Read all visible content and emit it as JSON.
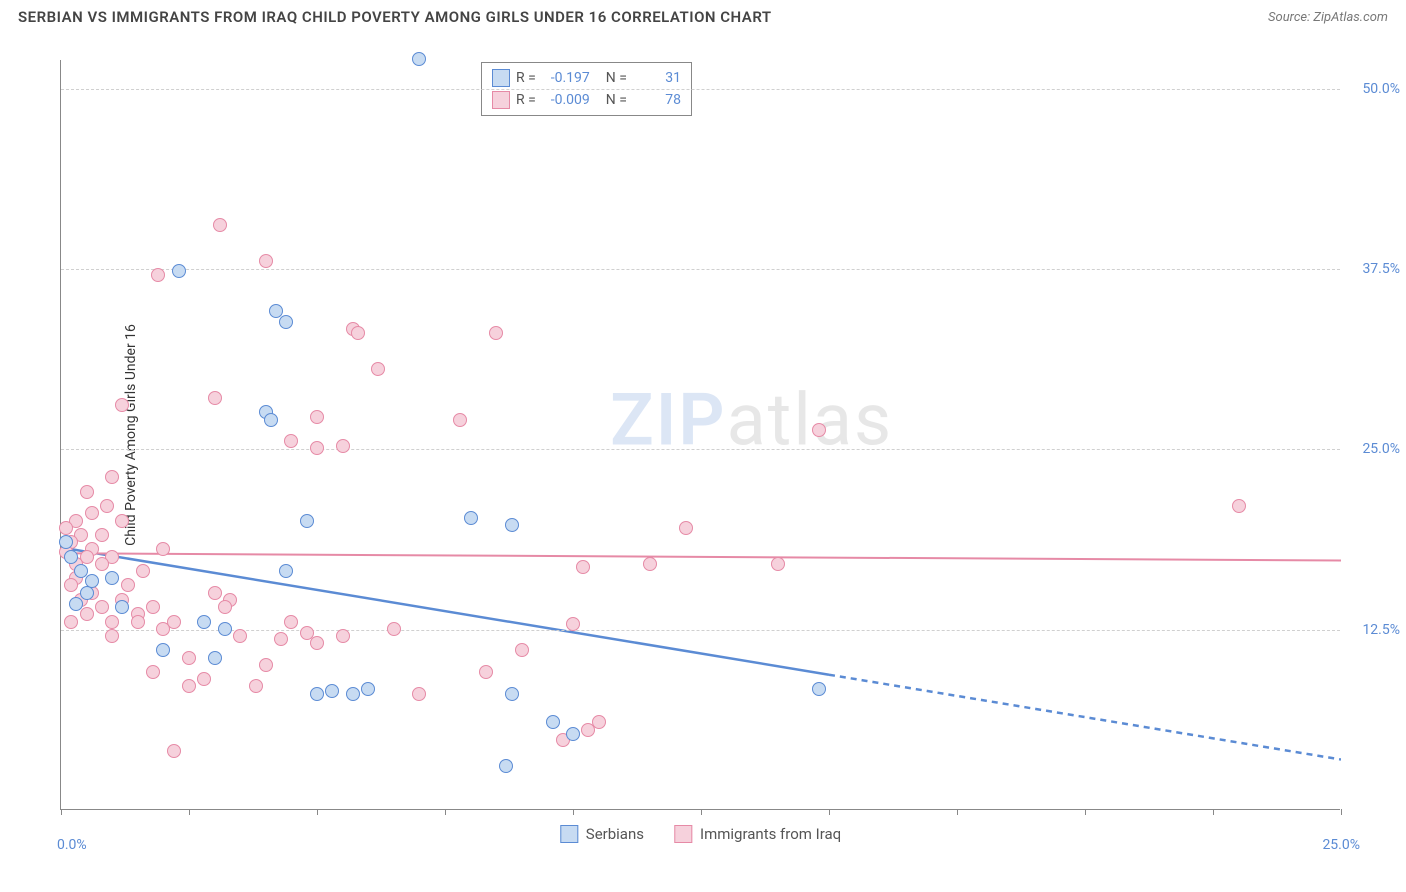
{
  "title": "SERBIAN VS IMMIGRANTS FROM IRAQ CHILD POVERTY AMONG GIRLS UNDER 16 CORRELATION CHART",
  "source": "Source: ZipAtlas.com",
  "y_axis_title": "Child Poverty Among Girls Under 16",
  "watermark": {
    "part1": "ZIP",
    "part2": "atlas"
  },
  "chart": {
    "type": "scatter",
    "xlim": [
      0,
      25
    ],
    "ylim": [
      0,
      52
    ],
    "x_ticks": [
      0,
      2.5,
      5,
      7.5,
      10,
      12.5,
      15,
      17.5,
      20,
      22.5,
      25
    ],
    "x_tick_labels": {
      "0": "0.0%",
      "25": "25.0%"
    },
    "y_ticks": [
      12.5,
      25.0,
      37.5,
      50.0
    ],
    "y_tick_labels": [
      "12.5%",
      "25.0%",
      "37.5%",
      "50.0%"
    ],
    "background_color": "#ffffff",
    "grid_color": "#d0d0d0",
    "axis_color": "#888888",
    "tick_label_color": "#5b8bd4",
    "marker_radius": 7,
    "marker_border_width": 1.2,
    "series": [
      {
        "id": "serbians",
        "label": "Serbians",
        "fill": "#c7dbf2",
        "stroke": "#5b8bd4",
        "stats": {
          "R": "-0.197",
          "N": "31"
        },
        "trend": {
          "y_at_x0": 18.2,
          "y_at_x25": 3.5,
          "solid_until_x": 15.0,
          "line_width": 2.5
        },
        "points": [
          [
            7.0,
            52.0
          ],
          [
            2.3,
            37.3
          ],
          [
            4.2,
            34.5
          ],
          [
            4.4,
            33.8
          ],
          [
            4.0,
            27.5
          ],
          [
            4.1,
            27.0
          ],
          [
            8.0,
            20.2
          ],
          [
            4.8,
            20.0
          ],
          [
            8.8,
            19.7
          ],
          [
            0.1,
            18.5
          ],
          [
            0.2,
            17.5
          ],
          [
            0.4,
            16.5
          ],
          [
            0.6,
            15.8
          ],
          [
            0.5,
            15.0
          ],
          [
            1.0,
            16.0
          ],
          [
            1.2,
            14.0
          ],
          [
            2.0,
            11.0
          ],
          [
            2.8,
            13.0
          ],
          [
            3.2,
            12.5
          ],
          [
            3.0,
            10.5
          ],
          [
            4.4,
            16.5
          ],
          [
            5.0,
            8.0
          ],
          [
            5.3,
            8.2
          ],
          [
            5.7,
            8.0
          ],
          [
            6.0,
            8.3
          ],
          [
            8.8,
            8.0
          ],
          [
            9.6,
            6.0
          ],
          [
            10.0,
            5.2
          ],
          [
            14.8,
            8.3
          ],
          [
            8.7,
            3.0
          ],
          [
            0.3,
            14.2
          ]
        ]
      },
      {
        "id": "iraq",
        "label": "Immigrants from Iraq",
        "fill": "#f6d1dc",
        "stroke": "#e68aa6",
        "stats": {
          "R": "-0.009",
          "N": "78"
        },
        "trend": {
          "y_at_x0": 17.8,
          "y_at_x25": 17.3,
          "solid_until_x": 25.0,
          "line_width": 2
        },
        "points": [
          [
            3.1,
            40.5
          ],
          [
            4.0,
            38.0
          ],
          [
            1.9,
            37.0
          ],
          [
            3.0,
            28.5
          ],
          [
            1.2,
            28.0
          ],
          [
            5.7,
            33.3
          ],
          [
            5.8,
            33.0
          ],
          [
            6.2,
            30.5
          ],
          [
            8.5,
            33.0
          ],
          [
            5.0,
            27.2
          ],
          [
            7.8,
            27.0
          ],
          [
            4.5,
            25.5
          ],
          [
            5.0,
            25.0
          ],
          [
            5.5,
            25.2
          ],
          [
            14.8,
            26.3
          ],
          [
            23.0,
            21.0
          ],
          [
            12.2,
            19.5
          ],
          [
            14.0,
            17.0
          ],
          [
            10.2,
            16.8
          ],
          [
            10.0,
            12.8
          ],
          [
            11.5,
            17.0
          ],
          [
            9.0,
            11.0
          ],
          [
            10.5,
            6.0
          ],
          [
            10.3,
            5.5
          ],
          [
            9.8,
            4.8
          ],
          [
            8.3,
            9.5
          ],
          [
            7.0,
            8.0
          ],
          [
            6.5,
            12.5
          ],
          [
            5.5,
            12.0
          ],
          [
            5.0,
            11.5
          ],
          [
            4.8,
            12.2
          ],
          [
            4.5,
            13.0
          ],
          [
            4.3,
            11.8
          ],
          [
            4.0,
            10.0
          ],
          [
            3.8,
            8.5
          ],
          [
            3.5,
            12.0
          ],
          [
            3.3,
            14.5
          ],
          [
            3.2,
            14.0
          ],
          [
            3.0,
            15.0
          ],
          [
            2.8,
            9.0
          ],
          [
            2.5,
            10.5
          ],
          [
            2.5,
            8.5
          ],
          [
            2.2,
            13.0
          ],
          [
            2.2,
            4.0
          ],
          [
            2.0,
            12.5
          ],
          [
            2.0,
            18.0
          ],
          [
            1.8,
            14.0
          ],
          [
            1.8,
            9.5
          ],
          [
            1.6,
            16.5
          ],
          [
            1.5,
            13.5
          ],
          [
            1.5,
            13.0
          ],
          [
            1.3,
            15.5
          ],
          [
            1.2,
            20.0
          ],
          [
            1.2,
            14.5
          ],
          [
            1.0,
            23.0
          ],
          [
            1.0,
            17.5
          ],
          [
            1.0,
            13.0
          ],
          [
            1.0,
            12.0
          ],
          [
            0.9,
            21.0
          ],
          [
            0.8,
            19.0
          ],
          [
            0.8,
            17.0
          ],
          [
            0.8,
            14.0
          ],
          [
            0.6,
            20.5
          ],
          [
            0.6,
            18.0
          ],
          [
            0.6,
            15.0
          ],
          [
            0.5,
            22.0
          ],
          [
            0.5,
            17.5
          ],
          [
            0.5,
            13.5
          ],
          [
            0.4,
            19.0
          ],
          [
            0.4,
            14.5
          ],
          [
            0.3,
            20.0
          ],
          [
            0.3,
            17.0
          ],
          [
            0.3,
            16.0
          ],
          [
            0.2,
            18.5
          ],
          [
            0.2,
            15.5
          ],
          [
            0.2,
            13.0
          ],
          [
            0.1,
            19.5
          ],
          [
            0.1,
            17.8
          ]
        ]
      }
    ]
  }
}
